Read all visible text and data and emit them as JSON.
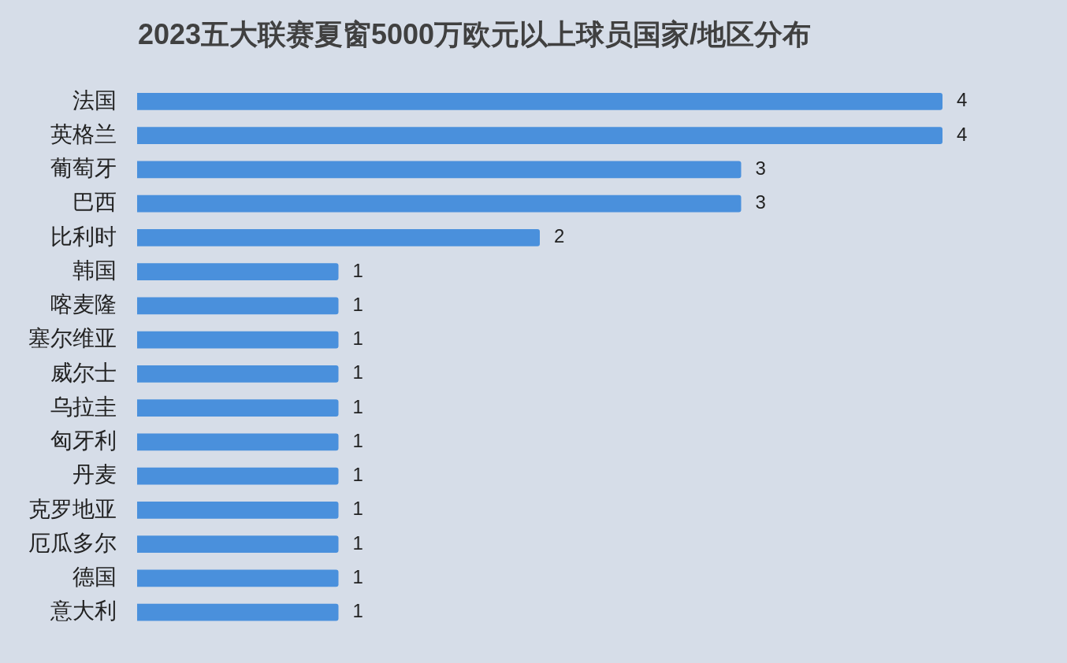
{
  "chart_data": {
    "type": "bar",
    "orientation": "horizontal",
    "title": "2023五大联赛夏窗5000万欧元以上球员国家/地区分布",
    "categories": [
      "法国",
      "英格兰",
      "葡萄牙",
      "巴西",
      "比利时",
      "韩国",
      "喀麦隆",
      "塞尔维亚",
      "威尔士",
      "乌拉圭",
      "匈牙利",
      "丹麦",
      "克罗地亚",
      "厄瓜多尔",
      "德国",
      "意大利"
    ],
    "values": [
      4,
      4,
      3,
      3,
      2,
      1,
      1,
      1,
      1,
      1,
      1,
      1,
      1,
      1,
      1,
      1
    ],
    "color": "#4a90dc",
    "xlim": [
      0,
      4
    ],
    "tick_labels": "y",
    "data_labels": true
  }
}
